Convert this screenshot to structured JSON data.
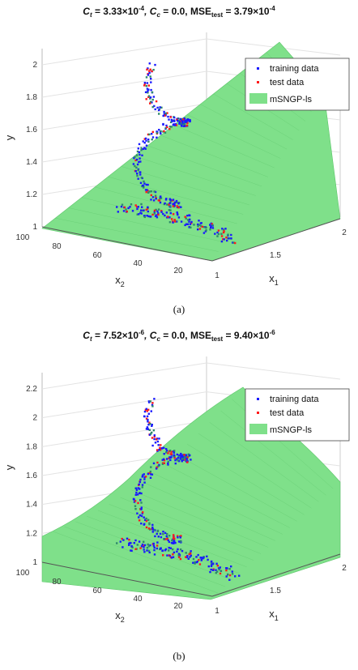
{
  "chart_data": [
    {
      "type": "surface3d",
      "panel": "a",
      "caption": "(a)",
      "title": {
        "ct": "C",
        "ct_sub": "t",
        "ct_val": " = 3.33×10",
        "ct_exp": "-4",
        "cc": ", C",
        "cc_sub": "c",
        "cc_val": " = 0.0, MSE",
        "mse_sub": "test",
        "mse_val": " = 3.79×10",
        "mse_exp": "-4"
      },
      "xlabel": "x",
      "xlabel_sub": "1",
      "ylabel": "x",
      "ylabel_sub": "2",
      "zlabel": "y",
      "x1_ticks": [
        "1",
        "1.5",
        "2"
      ],
      "x2_ticks": [
        "100",
        "80",
        "60",
        "40",
        "20"
      ],
      "y_ticks": [
        "1",
        "1.2",
        "1.4",
        "1.6",
        "1.8",
        "2"
      ],
      "zlim": [
        1,
        2
      ],
      "legend": [
        "training data",
        "test data",
        "mSNGP-ls"
      ],
      "surface_shape": "plane",
      "surface_color": "#7fe08a",
      "training_color": "#1a1aff",
      "test_color": "#ff1a1a",
      "legend_position": "top-right"
    },
    {
      "type": "surface3d",
      "panel": "b",
      "caption": "(b)",
      "title": {
        "ct": "C",
        "ct_sub": "t",
        "ct_val": " = 7.52×10",
        "ct_exp": "-6",
        "cc": ", C",
        "cc_sub": "c",
        "cc_val": " = 0.0, MSE",
        "mse_sub": "test",
        "mse_val": " = 9.40×10",
        "mse_exp": "-6"
      },
      "xlabel": "x",
      "xlabel_sub": "1",
      "ylabel": "x",
      "ylabel_sub": "2",
      "zlabel": "y",
      "x1_ticks": [
        "1",
        "1.5",
        "2"
      ],
      "x2_ticks": [
        "100",
        "80",
        "60",
        "40",
        "20"
      ],
      "y_ticks": [
        "1",
        "1.2",
        "1.4",
        "1.6",
        "1.8",
        "2",
        "2.2"
      ],
      "zlim": [
        1,
        2.2
      ],
      "legend": [
        "training data",
        "test data",
        "mSNGP-ls"
      ],
      "surface_shape": "curved",
      "surface_color": "#7fe08a",
      "training_color": "#1a1aff",
      "test_color": "#ff1a1a",
      "legend_position": "top-right"
    }
  ]
}
